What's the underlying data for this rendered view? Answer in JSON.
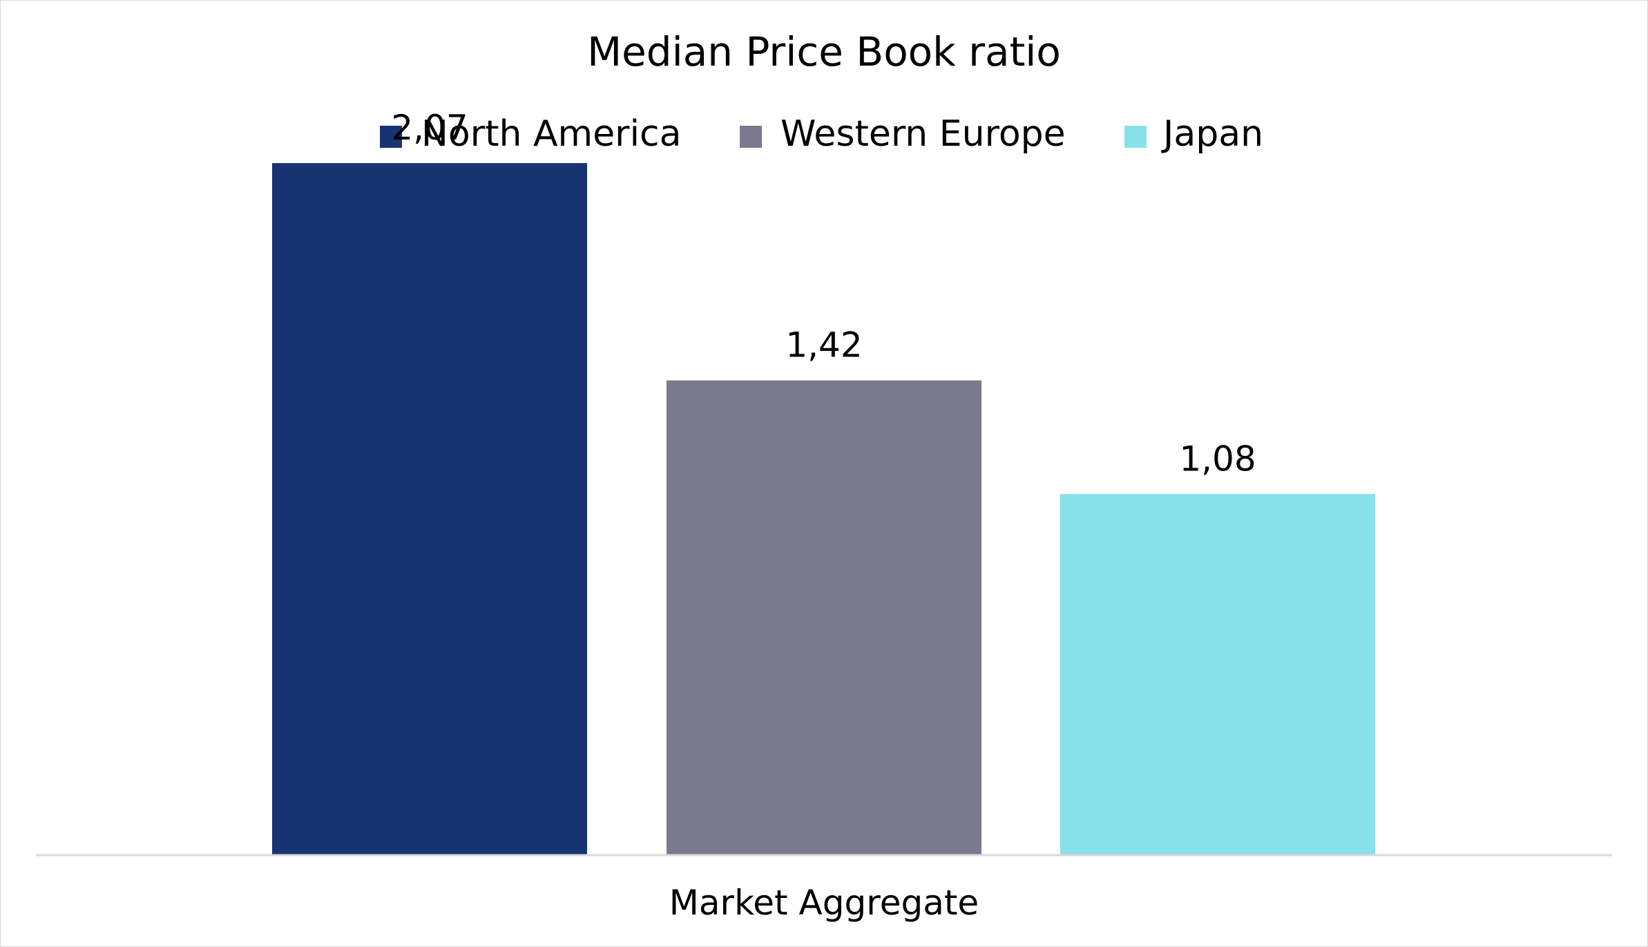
{
  "chart_data": {
    "type": "bar",
    "title": "Median Price Book ratio",
    "categories": [
      "Market Aggregate"
    ],
    "series": [
      {
        "name": "North America",
        "values": [
          2.07
        ],
        "label": "2,07",
        "color": "#173371"
      },
      {
        "name": "Western Europe",
        "values": [
          1.42
        ],
        "label": "1,42",
        "color": "#7b798c"
      },
      {
        "name": "Japan",
        "values": [
          1.08
        ],
        "label": "1,08",
        "color": "#87e1e9"
      }
    ],
    "xlabel": "",
    "ylabel": "",
    "ylim": [
      0,
      2.5
    ],
    "grid": false,
    "legend": "top-center",
    "baseline_color": "#d9d9d9"
  }
}
